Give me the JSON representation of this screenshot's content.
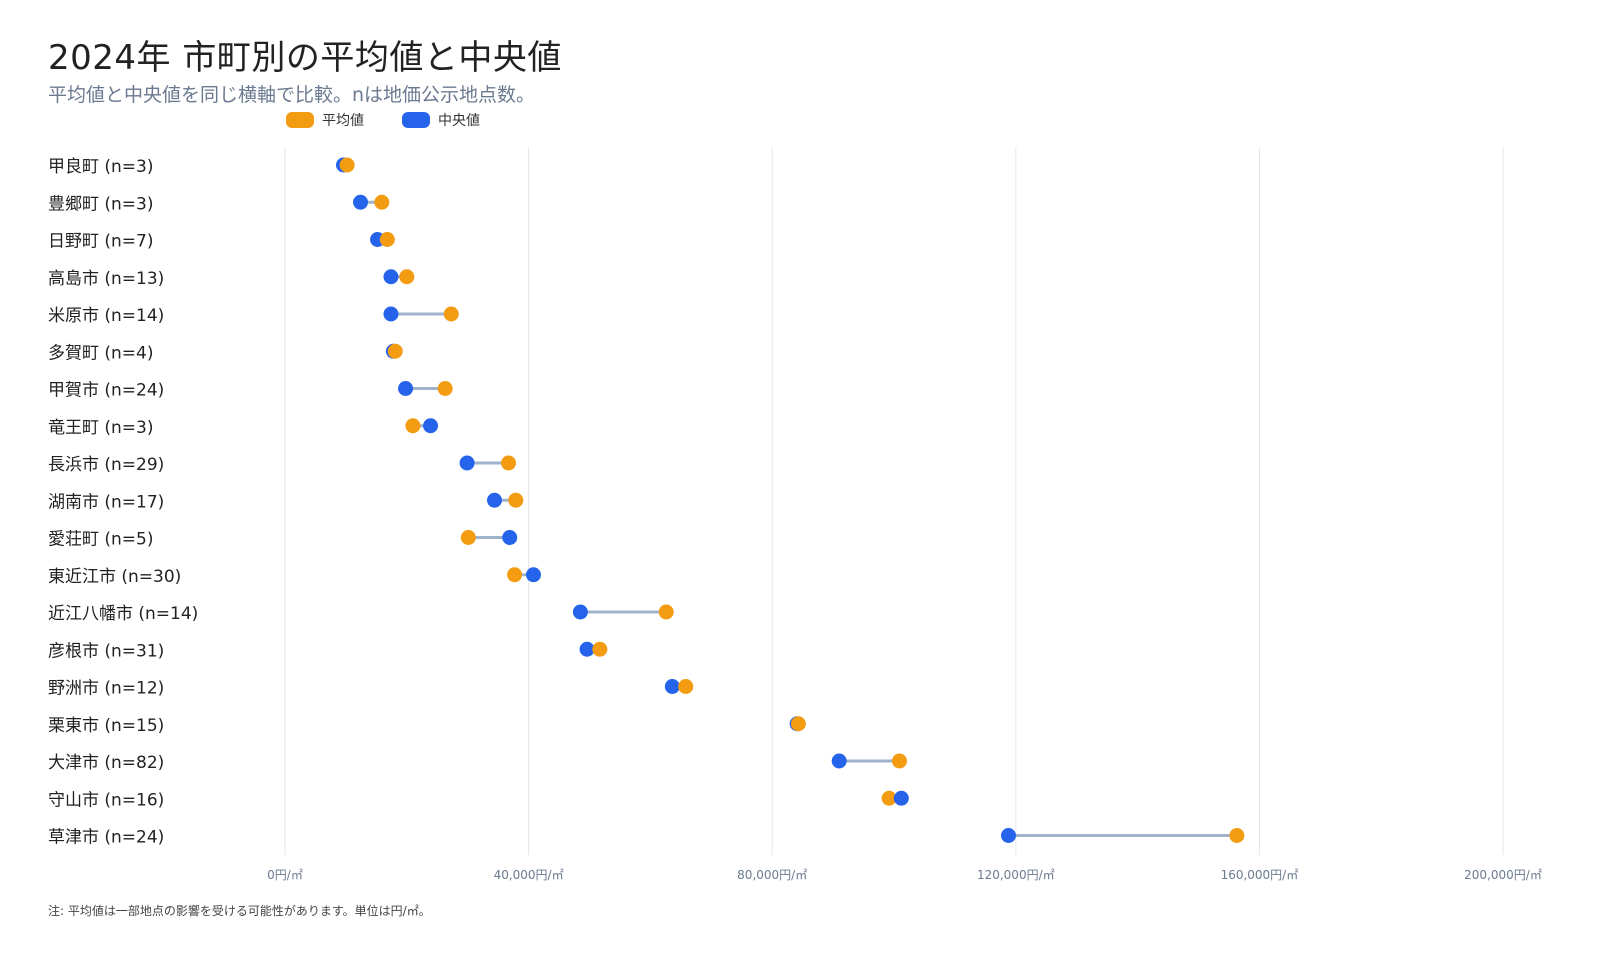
{
  "title": "2024年 市町別の平均値と中央値",
  "subtitle": "平均値と中央値を同じ横軸で比較。nは地価公示地点数。",
  "note": "注: 平均値は一部地点の影響を受ける可能性があります。単位は円/㎡。",
  "colors": {
    "mean": "#f39c12",
    "median": "#2563eb",
    "connector": "#9fb3cc",
    "grid": "#e3e6ea"
  },
  "legend": [
    {
      "label": "平均値",
      "color": "#f39c12"
    },
    {
      "label": "中央値",
      "color": "#2563eb"
    }
  ],
  "chart_data": {
    "type": "scatter",
    "subtype": "dumbbell",
    "xlim": [
      0,
      200000
    ],
    "x_ticks": [
      0,
      40000,
      80000,
      120000,
      160000,
      200000
    ],
    "x_tick_labels": [
      "0円/㎡",
      "40,000円/㎡",
      "80,000円/㎡",
      "120,000円/㎡",
      "160,000円/㎡",
      "200,000円/㎡"
    ],
    "grid": true,
    "legend_position": "top-left",
    "categories": [
      "甲良町 (n=3)",
      "豊郷町 (n=3)",
      "日野町 (n=7)",
      "高島市 (n=13)",
      "米原市 (n=14)",
      "多賀町 (n=4)",
      "甲賀市 (n=24)",
      "竜王町 (n=3)",
      "長浜市 (n=29)",
      "湖南市 (n=17)",
      "愛荘町 (n=5)",
      "東近江市 (n=30)",
      "近江八幡市 (n=14)",
      "彦根市 (n=31)",
      "野洲市 (n=12)",
      "栗東市 (n=15)",
      "大津市 (n=82)",
      "守山市 (n=16)",
      "草津市 (n=24)"
    ],
    "series": [
      {
        "name": "平均値",
        "values": [
          10200,
          15900,
          16800,
          20000,
          27300,
          18100,
          26300,
          21000,
          36700,
          37900,
          30100,
          37700,
          62600,
          51700,
          65800,
          84300,
          100900,
          99200,
          156300
        ]
      },
      {
        "name": "中央値",
        "values": [
          9600,
          12400,
          15200,
          17400,
          17400,
          17800,
          19800,
          23900,
          29900,
          34400,
          36900,
          40800,
          48500,
          49600,
          63600,
          84100,
          91000,
          101200,
          118800
        ]
      }
    ]
  }
}
